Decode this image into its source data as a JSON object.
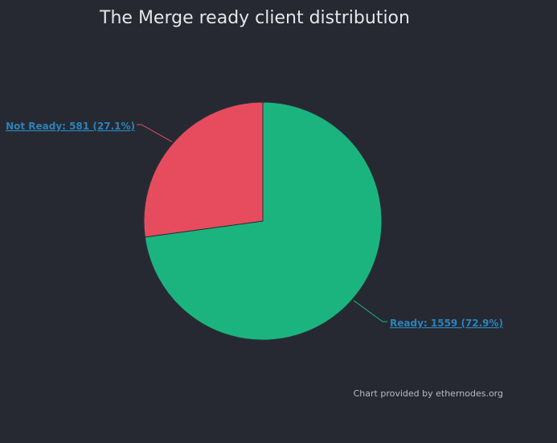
{
  "chart_data": {
    "type": "pie",
    "title": "The Merge ready client distribution",
    "slices": [
      {
        "name": "Ready",
        "value": 1559,
        "percent": 72.9,
        "color": "#1bb47f",
        "label": "Ready: 1559 (72.9%)"
      },
      {
        "name": "Not Ready",
        "value": 581,
        "percent": 27.1,
        "color": "#e74c5e",
        "label": "Not Ready: 581 (27.1%)"
      }
    ],
    "label_color": "#2a83b9",
    "background": "#262932"
  },
  "credit": "Chart provided by ethernodes.org"
}
